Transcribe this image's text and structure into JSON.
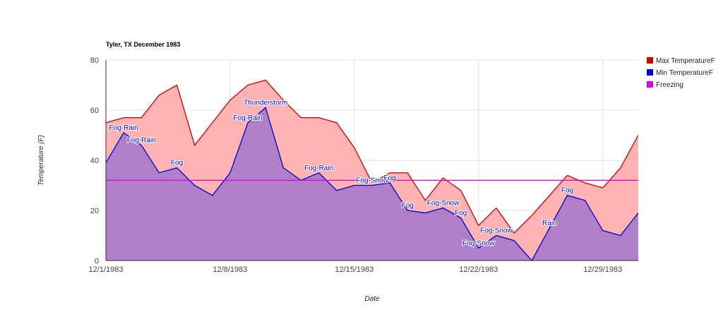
{
  "chart_data": {
    "type": "area",
    "title": "Tyler, TX December 1983",
    "xlabel": "Date",
    "ylabel": "Temperature (F)",
    "x": [
      1,
      2,
      3,
      4,
      5,
      6,
      7,
      8,
      9,
      10,
      11,
      12,
      13,
      14,
      15,
      16,
      17,
      18,
      19,
      20,
      21,
      22,
      23,
      24,
      25,
      26,
      27,
      28,
      29,
      30,
      31
    ],
    "x_ticks": [
      {
        "day": 1,
        "label": "12/1/1983"
      },
      {
        "day": 8,
        "label": "12/8/1983"
      },
      {
        "day": 15,
        "label": "12/15/1983"
      },
      {
        "day": 22,
        "label": "12/22/1983"
      },
      {
        "day": 29,
        "label": "12/29/1983"
      }
    ],
    "ylim": [
      0,
      80
    ],
    "y_ticks": [
      0,
      20,
      40,
      60,
      80
    ],
    "grid": true,
    "series": [
      {
        "name": "Max TemperatureF",
        "color": "#cc0000",
        "fill": "#ffb3b3",
        "values": [
          55,
          57,
          57,
          66,
          70,
          46,
          55,
          64,
          70,
          72,
          64,
          57,
          57,
          55,
          45,
          31,
          35,
          35,
          24,
          33,
          28,
          14,
          21,
          11,
          18,
          26,
          34,
          31,
          29,
          37,
          50
        ]
      },
      {
        "name": "Min TemperatureF",
        "color": "#0000cc",
        "fill": "#b07fc8",
        "values": [
          39,
          51,
          46,
          35,
          37,
          30,
          26,
          35,
          55,
          61,
          37,
          32,
          35,
          28,
          30,
          30,
          31,
          20,
          19,
          21,
          17,
          5,
          10,
          8,
          0,
          13,
          26,
          24,
          12,
          10,
          19
        ]
      },
      {
        "name": "Freezing",
        "color": "#dd00dd",
        "values": [
          32,
          32,
          32,
          32,
          32,
          32,
          32,
          32,
          32,
          32,
          32,
          32,
          32,
          32,
          32,
          32,
          32,
          32,
          32,
          32,
          32,
          32,
          32,
          32,
          32,
          32,
          32,
          32,
          32,
          32,
          32
        ]
      }
    ],
    "annotations": [
      {
        "day": 2,
        "y": 51,
        "text": "Fog-Rain"
      },
      {
        "day": 3,
        "y": 46,
        "text": "Fog-Rain"
      },
      {
        "day": 5,
        "y": 37,
        "text": "Fog"
      },
      {
        "day": 9,
        "y": 55,
        "text": "Fog-Rain"
      },
      {
        "day": 10,
        "y": 61,
        "text": "Thunderstorm"
      },
      {
        "day": 13,
        "y": 35,
        "text": "Fog-Rain"
      },
      {
        "day": 16,
        "y": 30,
        "text": "Fog-Snow"
      },
      {
        "day": 17,
        "y": 31,
        "text": "Fog"
      },
      {
        "day": 18,
        "y": 20,
        "text": "Fog"
      },
      {
        "day": 20,
        "y": 21,
        "text": "Fog-Snow"
      },
      {
        "day": 21,
        "y": 17,
        "text": "Fog"
      },
      {
        "day": 22,
        "y": 5,
        "text": "Fog-Snow"
      },
      {
        "day": 23,
        "y": 10,
        "text": "Fog-Snow"
      },
      {
        "day": 26,
        "y": 13,
        "text": "Rain"
      },
      {
        "day": 27,
        "y": 26,
        "text": "Fog"
      }
    ],
    "legend": "right"
  }
}
